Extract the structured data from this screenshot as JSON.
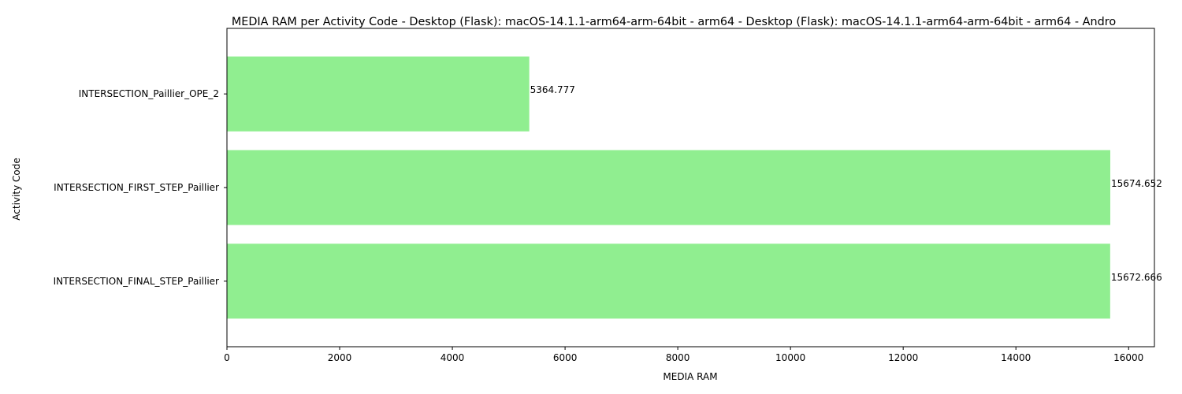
{
  "chart_data": {
    "type": "bar",
    "orientation": "horizontal",
    "title": "MEDIA RAM per Activity Code - Desktop (Flask): macOS-14.1.1-arm64-arm-64bit - arm64 - Desktop (Flask): macOS-14.1.1-arm64-arm-64bit - arm64 - Andro",
    "xlabel": "MEDIA RAM",
    "ylabel": "Activity Code",
    "categories": [
      "INTERSECTION_Paillier_OPE_2",
      "INTERSECTION_FIRST_STEP_Paillier",
      "INTERSECTION_FINAL_STEP_Paillier"
    ],
    "values": [
      5364.777,
      15674.652,
      15672.666
    ],
    "value_labels": [
      "5364.777",
      "15674.652",
      "15672.666"
    ],
    "xlim": [
      0,
      16458
    ],
    "xticks": [
      0,
      2000,
      4000,
      6000,
      8000,
      10000,
      12000,
      14000,
      16000
    ],
    "xtick_labels": [
      "0",
      "2000",
      "4000",
      "6000",
      "8000",
      "10000",
      "12000",
      "14000",
      "16000"
    ],
    "bar_color": "#90ee90",
    "grid": false
  }
}
